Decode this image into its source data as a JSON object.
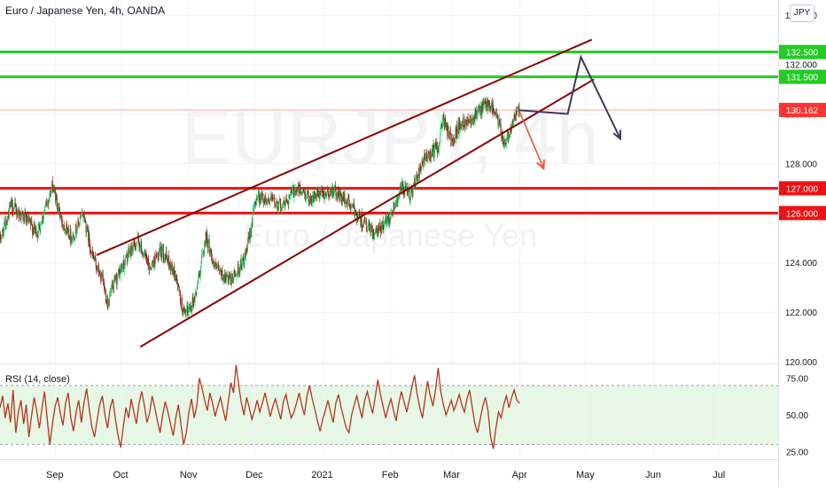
{
  "header": {
    "title": "Euro / Japanese Yen, 4h, OANDA",
    "currency": "JPY",
    "indicator_label": "RSI (14, close)"
  },
  "watermark": {
    "symbol": "EURJPY, 4h",
    "name": "Euro / Japanese Yen"
  },
  "colors": {
    "bull": "#26a69a",
    "bull_candle": "#22c55e",
    "bear": "#8b1a10",
    "channel": "#8b0000",
    "resistance": "#22cc22",
    "support": "#ee1111",
    "projection": "#3a3a5c",
    "bear_arrow": "#f0553a",
    "rsi_line": "#b5361b",
    "rsi_band": "#e6f7e6",
    "last_price": "#ff3333"
  },
  "chart_data": [
    {
      "type": "candlestick",
      "title": "Euro / Japanese Yen, 4h, OANDA",
      "ylim": [
        120,
        134.6
      ],
      "y_ticks": [
        120.0,
        122.0,
        124.0,
        126.0,
        128.0,
        130.0,
        132.0,
        134.0
      ],
      "x_ticks": [
        "Sep",
        "Oct",
        "Nov",
        "Dec",
        "2021",
        "Feb",
        "Mar",
        "Apr",
        "May",
        "Jun",
        "Jul"
      ],
      "x_range": [
        "2020-08-07",
        "2021-07-28"
      ],
      "price_path": [
        [
          "2020-08-07",
          124.9
        ],
        [
          "2020-08-12",
          126.3
        ],
        [
          "2020-08-18",
          125.8
        ],
        [
          "2020-08-24",
          125.2
        ],
        [
          "2020-08-31",
          127.1
        ],
        [
          "2020-09-04",
          125.7
        ],
        [
          "2020-09-09",
          125.0
        ],
        [
          "2020-09-14",
          126.0
        ],
        [
          "2020-09-18",
          124.3
        ],
        [
          "2020-09-23",
          123.2
        ],
        [
          "2020-09-25",
          122.4
        ],
        [
          "2020-09-30",
          123.5
        ],
        [
          "2020-10-05",
          124.4
        ],
        [
          "2020-10-09",
          124.9
        ],
        [
          "2020-10-14",
          123.8
        ],
        [
          "2020-10-20",
          124.5
        ],
        [
          "2020-10-26",
          123.5
        ],
        [
          "2020-10-30",
          121.8
        ],
        [
          "2020-11-04",
          122.6
        ],
        [
          "2020-11-09",
          125.1
        ],
        [
          "2020-11-13",
          123.8
        ],
        [
          "2020-11-20",
          123.2
        ],
        [
          "2020-11-27",
          124.2
        ],
        [
          "2020-12-02",
          126.7
        ],
        [
          "2020-12-09",
          126.5
        ],
        [
          "2020-12-14",
          126.3
        ],
        [
          "2020-12-20",
          127.0
        ],
        [
          "2020-12-27",
          126.6
        ],
        [
          "2021-01-06",
          126.9
        ],
        [
          "2021-01-13",
          126.4
        ],
        [
          "2021-01-19",
          125.7
        ],
        [
          "2021-01-25",
          125.1
        ],
        [
          "2021-02-01",
          125.9
        ],
        [
          "2021-02-06",
          127.0
        ],
        [
          "2021-02-10",
          126.7
        ],
        [
          "2021-02-17",
          128.2
        ],
        [
          "2021-02-23",
          128.7
        ],
        [
          "2021-02-25",
          129.8
        ],
        [
          "2021-03-01",
          128.9
        ],
        [
          "2021-03-05",
          129.6
        ],
        [
          "2021-03-11",
          129.9
        ],
        [
          "2021-03-16",
          130.3
        ],
        [
          "2021-03-18",
          130.5
        ],
        [
          "2021-03-22",
          129.8
        ],
        [
          "2021-03-25",
          128.8
        ],
        [
          "2021-03-29",
          129.7
        ],
        [
          "2021-04-01",
          130.2
        ]
      ],
      "channel_upper": [
        [
          "2020-09-20",
          124.3
        ],
        [
          "2021-05-04",
          133.0
        ]
      ],
      "channel_lower": [
        [
          "2020-10-10",
          120.6
        ],
        [
          "2021-05-05",
          131.4
        ]
      ],
      "horizontal_levels": [
        {
          "label": "132.500",
          "value": 132.5,
          "kind": "resistance"
        },
        {
          "label": "131.500",
          "value": 131.5,
          "kind": "resistance"
        },
        {
          "label": "127.000",
          "value": 127.0,
          "kind": "support"
        },
        {
          "label": "126.000",
          "value": 126.0,
          "kind": "support"
        }
      ],
      "last_price": {
        "label": "130.162",
        "value": 130.162
      },
      "projection_path": [
        [
          "2021-04-01",
          130.15
        ],
        [
          "2021-04-23",
          130.0
        ],
        [
          "2021-04-29",
          132.3
        ],
        [
          "2021-05-17",
          129.0
        ]
      ],
      "bearish_arrow": [
        [
          "2021-04-01",
          130.1
        ],
        [
          "2021-04-12",
          127.8
        ]
      ]
    },
    {
      "type": "line",
      "title": "RSI (14, close)",
      "ylim": [
        20,
        85
      ],
      "y_ticks": [
        25.0,
        50.0,
        75.0
      ],
      "band": [
        30,
        70
      ],
      "series": [
        {
          "values": [
            55,
            63,
            48,
            58,
            45,
            67,
            38,
            52,
            60,
            44,
            57,
            35,
            49,
            62,
            53,
            41,
            55,
            66,
            47,
            30,
            44,
            56,
            62,
            51,
            43,
            58,
            65,
            48,
            39,
            52,
            60,
            45,
            58,
            68,
            54,
            42,
            35,
            46,
            57,
            63,
            50,
            41,
            55,
            61,
            47,
            36,
            28,
            42,
            55,
            48,
            61,
            52,
            44,
            58,
            66,
            57,
            45,
            51,
            63,
            55,
            46,
            38,
            50,
            59,
            52,
            44,
            36,
            48,
            57,
            43,
            30,
            38,
            52,
            61,
            48,
            56,
            75,
            68,
            60,
            53,
            65,
            58,
            49,
            56,
            62,
            54,
            46,
            59,
            72,
            65,
            84,
            70,
            58,
            50,
            62,
            55,
            47,
            53,
            60,
            52,
            58,
            65,
            57,
            49,
            56,
            61,
            54,
            47,
            59,
            64,
            55,
            48,
            52,
            58,
            65,
            57,
            50,
            63,
            70,
            61,
            54,
            46,
            39,
            47,
            53,
            60,
            52,
            45,
            58,
            64,
            55,
            48,
            41,
            38,
            50,
            57,
            63,
            55,
            48,
            60,
            66,
            58,
            51,
            62,
            74,
            64,
            56,
            48,
            55,
            61,
            53,
            46,
            58,
            66,
            59,
            52,
            60,
            69,
            77,
            64,
            55,
            48,
            61,
            73,
            63,
            56,
            67,
            82,
            66,
            57,
            50,
            55,
            60,
            53,
            58,
            64,
            57,
            52,
            61,
            67,
            55,
            44,
            38,
            47,
            56,
            62,
            53,
            35,
            27,
            41,
            52,
            48,
            57,
            63,
            55,
            62,
            67,
            60,
            58
          ]
        }
      ]
    }
  ]
}
